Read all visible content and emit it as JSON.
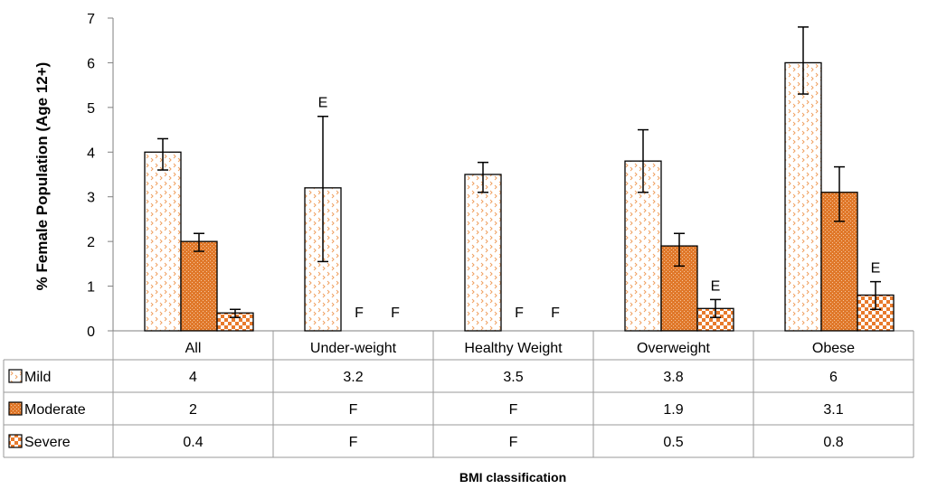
{
  "chart_data": {
    "type": "bar",
    "ylabel": "% Female Population (Age 12+)",
    "xlabel": "BMI classification",
    "ylim": [
      0,
      7
    ],
    "y_ticks": [
      0,
      1,
      2,
      3,
      4,
      5,
      6,
      7
    ],
    "categories": [
      "All",
      "Under-weight",
      "Healthy Weight",
      "Overweight",
      "Obese"
    ],
    "grid": false,
    "legend": "data-table",
    "series": [
      {
        "name": "Mild",
        "values": [
          4,
          3.2,
          3.5,
          3.8,
          6
        ],
        "error_low": [
          3.6,
          1.55,
          3.1,
          3.1,
          5.3
        ],
        "error_high": [
          4.3,
          4.8,
          3.77,
          4.5,
          6.8
        ],
        "bar_flags": [
          "",
          "",
          "",
          "",
          ""
        ],
        "above_flags": [
          "",
          "E",
          "",
          "",
          ""
        ],
        "table": [
          "4",
          "3.2",
          "3.5",
          "3.8",
          "6"
        ],
        "color": "#E87A2C",
        "pattern": "dots"
      },
      {
        "name": "Moderate",
        "values": [
          2,
          null,
          null,
          1.9,
          3.1
        ],
        "error_low": [
          1.78,
          null,
          null,
          1.45,
          2.45
        ],
        "error_high": [
          2.18,
          null,
          null,
          2.18,
          3.67
        ],
        "bar_flags": [
          "",
          "F",
          "F",
          "",
          ""
        ],
        "above_flags": [
          "",
          "",
          "",
          "",
          ""
        ],
        "table": [
          "2",
          "F",
          "F",
          "1.9",
          "3.1"
        ],
        "color": "#E87A2C",
        "pattern": "dense"
      },
      {
        "name": "Severe",
        "values": [
          0.4,
          null,
          null,
          0.5,
          0.8
        ],
        "error_low": [
          0.3,
          null,
          null,
          0.3,
          0.48
        ],
        "error_high": [
          0.48,
          null,
          null,
          0.7,
          1.1
        ],
        "bar_flags": [
          "",
          "F",
          "F",
          "",
          ""
        ],
        "above_flags": [
          "",
          "",
          "",
          "E",
          "E"
        ],
        "table": [
          "0.4",
          "F",
          "F",
          "0.5",
          "0.8"
        ],
        "color": "#E87A2C",
        "pattern": "checker"
      }
    ]
  }
}
